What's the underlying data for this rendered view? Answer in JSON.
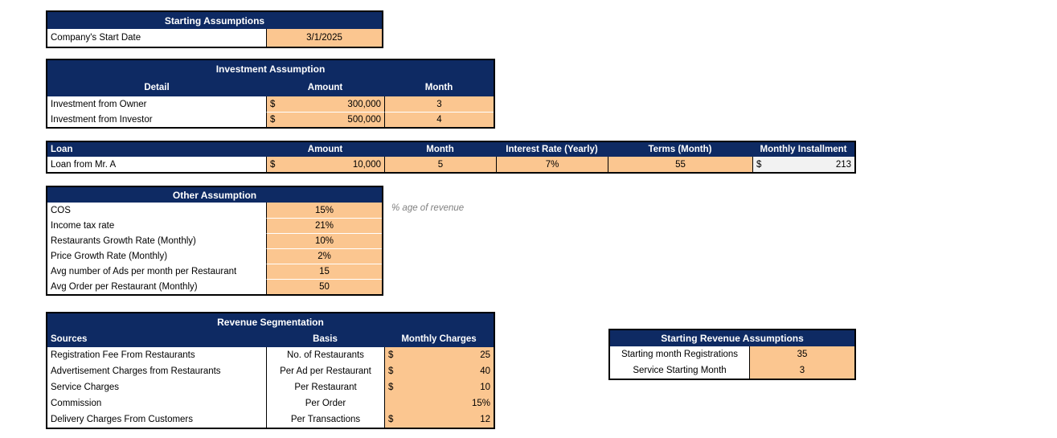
{
  "colors": {
    "header_navy": "#0E2A63",
    "input_orange": "#FBC690",
    "computed_cell_gray": "#F2F2F2",
    "note_gray": "#808080"
  },
  "starting_assumptions": {
    "title": "Starting Assumptions",
    "label": "Company's Start Date",
    "value": "3/1/2025"
  },
  "investment_assumption": {
    "title": "Investment Assumption",
    "headers": {
      "detail": "Detail",
      "amount": "Amount",
      "month": "Month"
    },
    "rows": [
      {
        "detail": "Investment from Owner",
        "currency": "$",
        "amount": "300,000",
        "month": "3"
      },
      {
        "detail": "Investment from Investor",
        "currency": "$",
        "amount": "500,000",
        "month": "4"
      }
    ]
  },
  "loan": {
    "headers": {
      "loan": "Loan",
      "amount": "Amount",
      "month": "Month",
      "interest": "Interest Rate (Yearly)",
      "terms": "Terms (Month)",
      "installment": "Monthly Installment"
    },
    "row": {
      "name": "Loan from Mr. A",
      "currency": "$",
      "amount": "10,000",
      "month": "5",
      "interest": "7%",
      "terms": "55",
      "installment_currency": "$",
      "installment": "213"
    }
  },
  "other_assumption": {
    "title": "Other Assumption",
    "note": "% age of revenue",
    "rows": [
      {
        "label": "COS",
        "value": "15%"
      },
      {
        "label": "Income tax rate",
        "value": "21%"
      },
      {
        "label": "Restaurants Growth Rate (Monthly)",
        "value": "10%"
      },
      {
        "label": "Price Growth Rate (Monthly)",
        "value": "2%"
      },
      {
        "label": "Avg number of Ads per month per Restaurant",
        "value": "15"
      },
      {
        "label": "Avg Order per Restaurant (Monthly)",
        "value": "50"
      }
    ]
  },
  "revenue_segmentation": {
    "title": "Revenue Segmentation",
    "headers": {
      "sources": "Sources",
      "basis": "Basis",
      "charges": "Monthly Charges"
    },
    "rows": [
      {
        "source": "Registration Fee From Restaurants",
        "basis": "No. of Restaurants",
        "currency": "$",
        "value": "25"
      },
      {
        "source": "Advertisement Charges from Restaurants",
        "basis": "Per Ad per Restaurant",
        "currency": "$",
        "value": "40"
      },
      {
        "source": "Service Charges",
        "basis": "Per Restaurant",
        "currency": "$",
        "value": "10"
      },
      {
        "source": "Commission",
        "basis": "Per Order",
        "currency": "",
        "value": "15%"
      },
      {
        "source": "Delivery Charges From Customers",
        "basis": "Per Transactions",
        "currency": "$",
        "value": "12"
      }
    ]
  },
  "starting_revenue_assumptions": {
    "title": "Starting Revenue Assumptions",
    "rows": [
      {
        "label": "Starting month Registrations",
        "value": "35"
      },
      {
        "label": "Service Starting Month",
        "value": "3"
      }
    ]
  }
}
